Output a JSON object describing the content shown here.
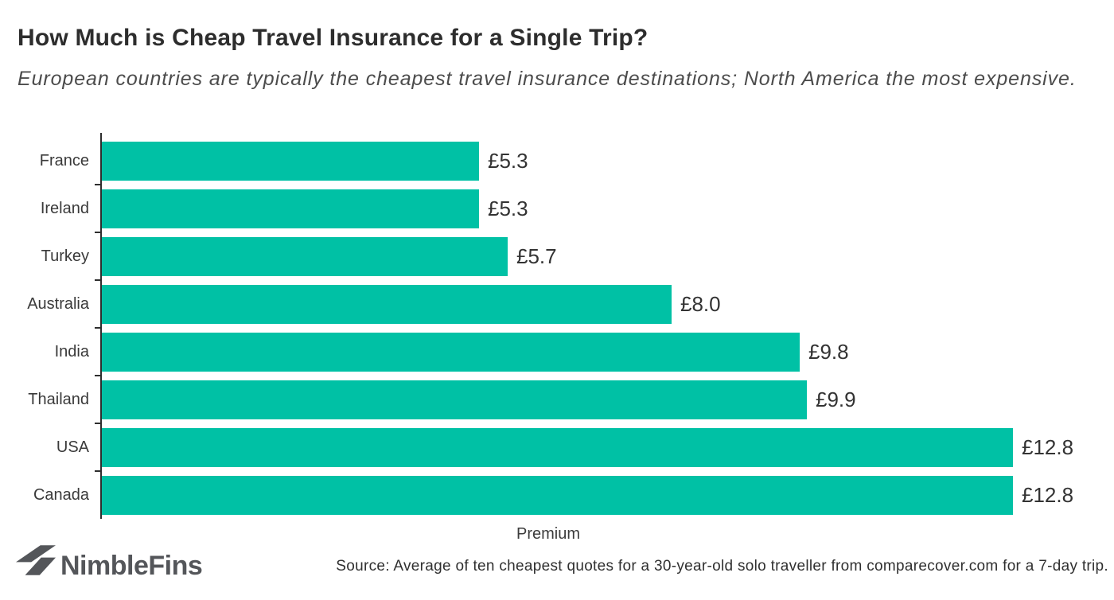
{
  "chart_data": {
    "type": "bar",
    "orientation": "horizontal",
    "title": "How Much is Cheap Travel Insurance for a Single Trip?",
    "subtitle": "European countries are typically the cheapest travel insurance destinations; North America the most expensive.",
    "categories": [
      "France",
      "Ireland",
      "Turkey",
      "Australia",
      "India",
      "Thailand",
      "USA",
      "Canada"
    ],
    "values": [
      5.3,
      5.3,
      5.7,
      8.0,
      9.8,
      9.9,
      12.8,
      12.8
    ],
    "value_labels": [
      "£5.3",
      "£5.3",
      "£5.7",
      "£8.0",
      "£9.8",
      "£9.9",
      "£12.8",
      "£12.8"
    ],
    "currency": "£",
    "xlabel": "Premium",
    "ylabel": "",
    "xlim": [
      0,
      12.8
    ],
    "grid": false,
    "legend": false,
    "bar_color": "#00C1A5",
    "axis_color": "#2E2E2E"
  },
  "footer": {
    "brand": "NimbleFins",
    "source": "Source: Average of ten cheapest quotes for a 30-year-old solo traveller from comparecover.com for a 7-day trip."
  },
  "icons": {
    "logo": "nimblefins-fin-icon",
    "logo_color": "#54565A"
  }
}
